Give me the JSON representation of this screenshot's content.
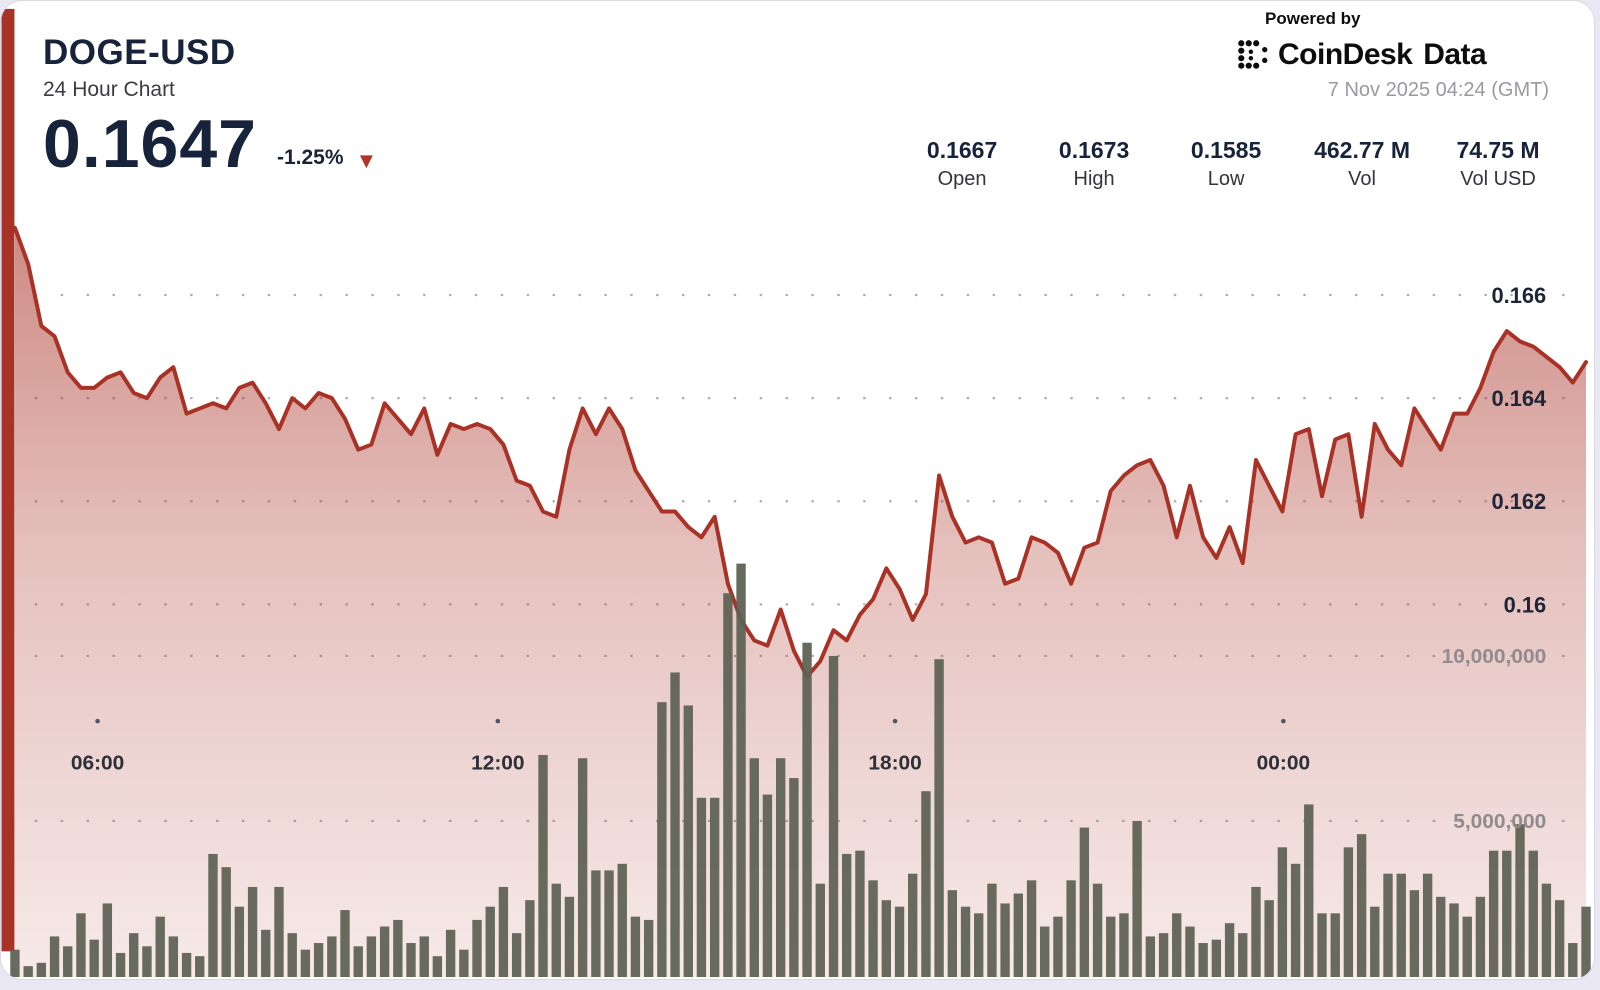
{
  "header": {
    "symbol": "DOGE-USD",
    "subtitle": "24 Hour Chart",
    "price": "0.1647",
    "change": "-1.25%",
    "change_arrow": "▼",
    "change_direction": "down"
  },
  "branding": {
    "powered_by": "Powered by",
    "provider": "CoinDesk Data",
    "timestamp": "7 Nov 2025 04:24 (GMT)"
  },
  "stats": [
    {
      "value": "0.1667",
      "label": "Open"
    },
    {
      "value": "0.1673",
      "label": "High"
    },
    {
      "value": "0.1585",
      "label": "Low"
    },
    {
      "value": "462.77 M",
      "label": "Vol"
    },
    {
      "value": "74.75 M",
      "label": "Vol USD"
    }
  ],
  "colors": {
    "accent_navy": "#17223b",
    "line_red": "#a93226",
    "down_red": "#b23427",
    "bar_olive": "#5d6254",
    "page_bg": "#e9e7f1",
    "muted_gray": "#9a99a2"
  },
  "chart_data": {
    "type": "line+bar",
    "title": "DOGE-USD 24 Hour Chart",
    "grid": "dotted",
    "x_axis": {
      "ticks": [
        "06:00",
        "12:00",
        "18:00",
        "00:00"
      ],
      "span_hours": 24
    },
    "price_axis": {
      "position": "right",
      "ticks": [
        0.166,
        0.164,
        0.162,
        0.16
      ],
      "tick_labels": [
        "0.166",
        "0.164",
        "0.162",
        "0.16"
      ]
    },
    "volume_axis": {
      "position": "right",
      "ticks_millions": [
        10,
        5
      ],
      "tick_labels": [
        "10,000,000",
        "5,000,000"
      ]
    },
    "series": [
      {
        "name": "price",
        "type": "area-line",
        "color": "#a93226",
        "values": [
          0.1673,
          0.1666,
          0.1654,
          0.1652,
          0.1645,
          0.1642,
          0.1642,
          0.1644,
          0.1645,
          0.1641,
          0.164,
          0.1644,
          0.1646,
          0.1637,
          0.1638,
          0.1639,
          0.1638,
          0.1642,
          0.1643,
          0.1639,
          0.1634,
          0.164,
          0.1638,
          0.1641,
          0.164,
          0.1636,
          0.163,
          0.1631,
          0.1639,
          0.1636,
          0.1633,
          0.1638,
          0.1629,
          0.1635,
          0.1634,
          0.1635,
          0.1634,
          0.1631,
          0.1624,
          0.1623,
          0.1618,
          0.1617,
          0.163,
          0.1638,
          0.1633,
          0.1638,
          0.1634,
          0.1626,
          0.1622,
          0.1618,
          0.1618,
          0.1615,
          0.1613,
          0.1617,
          0.1604,
          0.1597,
          0.1593,
          0.1592,
          0.1599,
          0.1591,
          0.1586,
          0.1589,
          0.1595,
          0.1593,
          0.1598,
          0.1601,
          0.1607,
          0.1603,
          0.1597,
          0.1602,
          0.1625,
          0.1617,
          0.1612,
          0.1613,
          0.1612,
          0.1604,
          0.1605,
          0.1613,
          0.1612,
          0.161,
          0.1604,
          0.1611,
          0.1612,
          0.1622,
          0.1625,
          0.1627,
          0.1628,
          0.1623,
          0.1613,
          0.1623,
          0.1613,
          0.1609,
          0.1615,
          0.1608,
          0.1628,
          0.1623,
          0.1618,
          0.1633,
          0.1634,
          0.1621,
          0.1632,
          0.1633,
          0.1617,
          0.1635,
          0.163,
          0.1627,
          0.1638,
          0.1634,
          0.163,
          0.1637,
          0.1637,
          0.1642,
          0.1649,
          0.1653,
          0.1651,
          0.165,
          0.1648,
          0.1646,
          0.1643,
          0.1647
        ]
      },
      {
        "name": "volume",
        "type": "bar",
        "unit": "millions",
        "color": "#5d6254",
        "values": [
          1.1,
          0.6,
          0.7,
          1.5,
          1.2,
          2.2,
          1.4,
          2.5,
          1.0,
          1.6,
          1.2,
          2.1,
          1.5,
          1.0,
          0.9,
          4.0,
          3.6,
          2.4,
          3.0,
          1.7,
          3.0,
          1.6,
          1.1,
          1.3,
          1.5,
          2.3,
          1.2,
          1.5,
          1.8,
          2.0,
          1.3,
          1.5,
          0.9,
          1.7,
          1.1,
          2.0,
          2.4,
          3.0,
          1.6,
          2.6,
          7.0,
          3.1,
          2.7,
          6.9,
          3.5,
          3.5,
          3.7,
          2.1,
          2.0,
          8.6,
          9.5,
          8.5,
          5.7,
          5.7,
          11.9,
          12.8,
          6.9,
          5.8,
          6.9,
          6.3,
          10.4,
          3.1,
          10.0,
          4.0,
          4.1,
          3.2,
          2.6,
          2.4,
          3.4,
          5.9,
          9.9,
          2.9,
          2.4,
          2.2,
          3.1,
          2.5,
          2.8,
          3.2,
          1.8,
          2.1,
          3.2,
          4.8,
          3.1,
          2.1,
          2.2,
          5.0,
          1.5,
          1.6,
          2.2,
          1.8,
          1.3,
          1.4,
          1.9,
          1.6,
          3.0,
          2.6,
          4.2,
          3.7,
          5.5,
          2.2,
          2.2,
          4.2,
          4.6,
          2.4,
          3.4,
          3.4,
          2.9,
          3.4,
          2.7,
          2.5,
          2.1,
          2.7,
          4.1,
          4.1,
          4.9,
          4.1,
          3.1,
          2.6,
          1.3,
          2.4
        ]
      }
    ]
  }
}
